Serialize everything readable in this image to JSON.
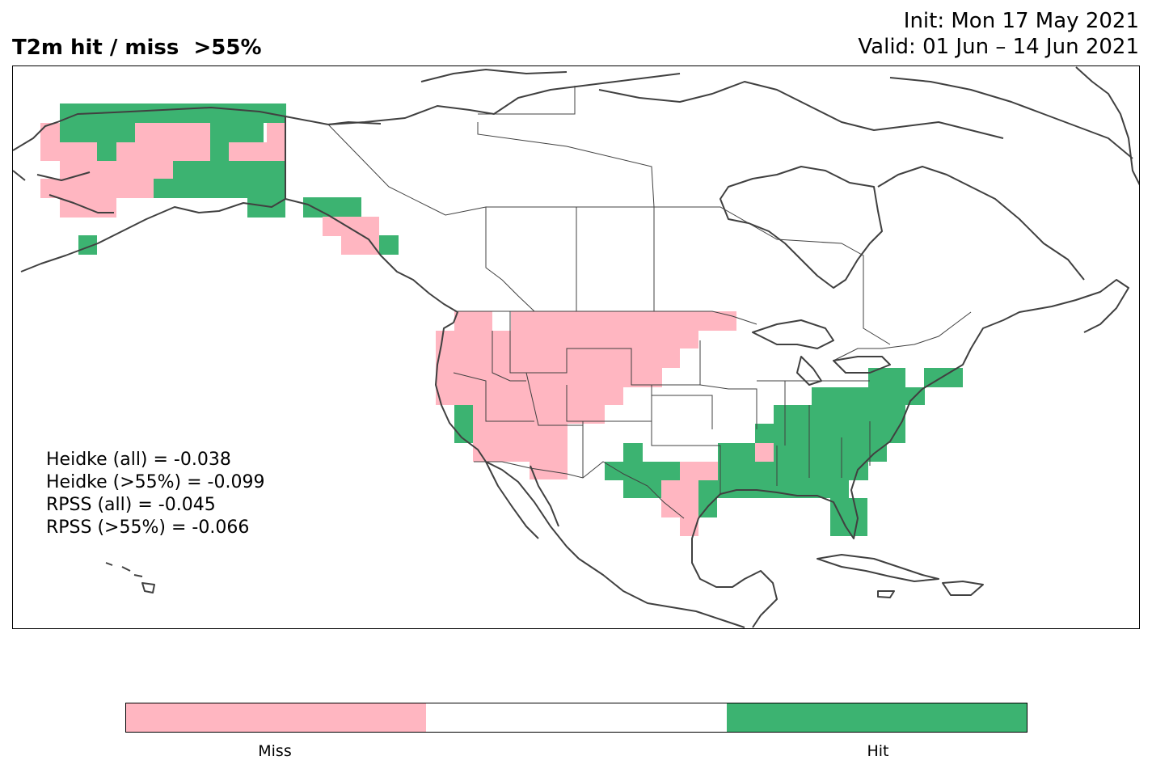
{
  "header": {
    "title": "T2m hit / miss  >55%",
    "init": "Init: Mon 17 May 2021",
    "valid": "Valid: 01 Jun – 14 Jun 2021"
  },
  "scores": {
    "heidke_all": "Heidke (all) = -0.038",
    "heidke_55": "Heidke (>55%) = -0.099",
    "rpss_all": "RPSS (all) = -0.045",
    "rpss_55": "RPSS (>55%) = -0.066"
  },
  "colorbar": {
    "miss_label": "Miss",
    "hit_label": "Hit",
    "colors": {
      "miss": "#ffb6c1",
      "neutral": "#ffffff",
      "hit": "#3cb371"
    }
  },
  "map": {
    "region": "North America",
    "coastline_color": "#404040",
    "cell_colors": {
      "miss": "#ffb6c1",
      "hit": "#3cb371"
    }
  }
}
